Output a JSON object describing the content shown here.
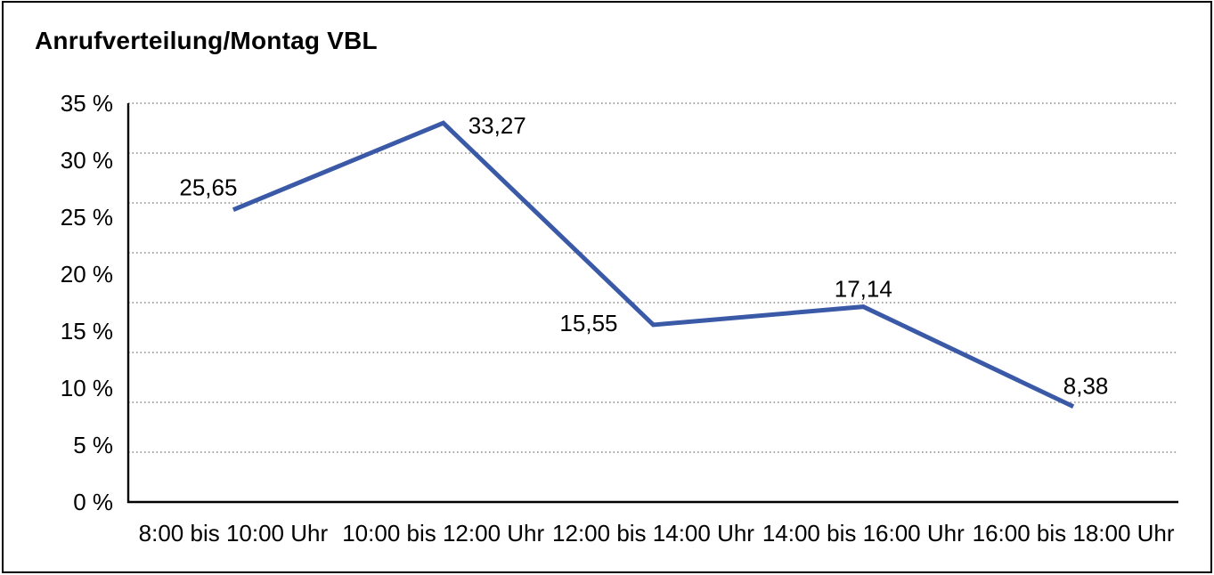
{
  "title": "Anrufverteilung/Montag VBL",
  "colors": {
    "line": "#3A59A6",
    "grid": "#8A8A8A",
    "axis": "#000000",
    "text": "#000000",
    "border": "#000000",
    "background": "#FFFFFF"
  },
  "chart_data": {
    "type": "line",
    "title": "Anrufverteilung/Montag VBL",
    "categories": [
      "8:00 bis 10:00 Uhr",
      "10:00 bis 12:00 Uhr",
      "12:00 bis 14:00 Uhr",
      "14:00 bis 16:00 Uhr",
      "16:00 bis 18:00 Uhr"
    ],
    "values": [
      25.65,
      33.27,
      15.55,
      17.14,
      8.38
    ],
    "data_labels": [
      "25,65",
      "33,27",
      "15,55",
      "17,14",
      "8,38"
    ],
    "data_label_positions": [
      "above-left",
      "right",
      "left",
      "above",
      "above-right"
    ],
    "xlabel": "",
    "ylabel": "",
    "ylim": [
      0,
      35
    ],
    "ytick_step": 5,
    "ytick_labels": [
      "35 %",
      "30 %",
      "25 %",
      "20 %",
      "15 %",
      "10 %",
      "5 %",
      "0 %"
    ],
    "unit": "%",
    "grid": "horizontal-dotted",
    "grid_divisions": 8,
    "legend": "none",
    "markers": "none"
  }
}
